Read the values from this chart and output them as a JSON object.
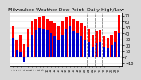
{
  "title": "Milwaukee Weather Dew Point  Daily High/Low",
  "title_fontsize": 4.5,
  "background_color": "#d8d8d8",
  "plot_bg_color": "#ffffff",
  "high_color": "#ff0000",
  "low_color": "#0000cc",
  "ylim": [
    -15,
    75
  ],
  "yticks": [
    -10,
    0,
    10,
    20,
    30,
    40,
    50,
    60,
    70
  ],
  "dashed_vlines": [
    18.5,
    20.5,
    22.5,
    24.5
  ],
  "days": [
    1,
    2,
    3,
    4,
    5,
    6,
    7,
    8,
    9,
    10,
    11,
    12,
    13,
    14,
    15,
    16,
    17,
    18,
    19,
    20,
    21,
    22,
    23,
    24,
    25,
    26,
    27,
    28,
    29
  ],
  "highs": [
    52,
    28,
    38,
    22,
    48,
    62,
    65,
    68,
    70,
    65,
    62,
    58,
    52,
    60,
    68,
    70,
    65,
    62,
    58,
    52,
    48,
    38,
    44,
    46,
    36,
    33,
    38,
    44,
    72
  ],
  "lows": [
    32,
    12,
    8,
    -8,
    18,
    38,
    46,
    50,
    48,
    46,
    40,
    36,
    30,
    38,
    48,
    52,
    44,
    40,
    36,
    30,
    26,
    18,
    24,
    26,
    18,
    16,
    20,
    26,
    40
  ]
}
